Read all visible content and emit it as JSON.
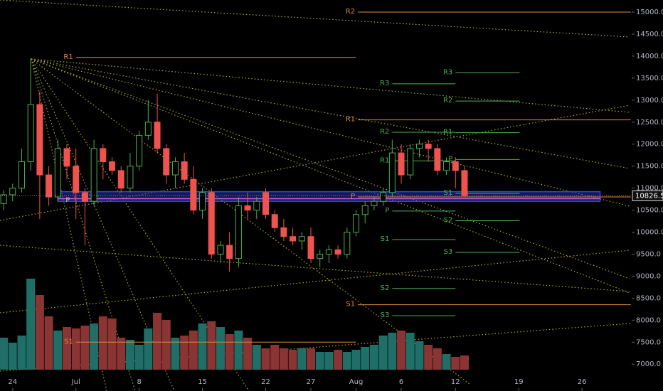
{
  "chart_data": {
    "type": "candlestick",
    "open": [
      10650,
      10850,
      11000,
      11600,
      12900,
      11300,
      10800,
      11900,
      11500,
      10900,
      10700,
      11900,
      11600,
      11400,
      11000,
      11500,
      12200,
      12500,
      11900,
      11300,
      11600,
      11200,
      10500,
      10900,
      9500,
      9700,
      9400,
      10600,
      10500,
      10900,
      10400,
      10100,
      9900,
      9800,
      9900,
      9400,
      9500,
      9600,
      9500,
      10000,
      10400,
      10600,
      10700,
      10900,
      11800,
      11300,
      11900,
      12000,
      11900,
      11400,
      11600,
      11400
    ],
    "high": [
      10950,
      11100,
      11900,
      13950,
      13200,
      11500,
      12100,
      12000,
      11900,
      11000,
      12100,
      12000,
      11700,
      11500,
      11800,
      12300,
      13000,
      13150,
      12000,
      11700,
      11800,
      11500,
      11000,
      11000,
      9800,
      10000,
      10800,
      10900,
      10800,
      11000,
      10500,
      10300,
      10100,
      10000,
      10100,
      9600,
      9700,
      9700,
      10100,
      10500,
      10700,
      10800,
      11000,
      12100,
      12000,
      12000,
      12100,
      12100,
      12000,
      11700,
      11700,
      11500
    ],
    "low": [
      10500,
      10700,
      10900,
      11400,
      10300,
      10600,
      10700,
      11200,
      10300,
      9700,
      10600,
      11200,
      11300,
      10900,
      10900,
      11400,
      12100,
      11800,
      11100,
      11000,
      11100,
      10400,
      10300,
      9400,
      9300,
      9100,
      9200,
      10300,
      10300,
      10300,
      10000,
      9800,
      9700,
      9600,
      9300,
      9200,
      9300,
      9400,
      9400,
      9900,
      10200,
      10500,
      10600,
      10800,
      11100,
      11200,
      11700,
      11600,
      11300,
      11300,
      11000,
      10800
    ],
    "close": [
      10850,
      11000,
      11600,
      12900,
      11300,
      10800,
      11900,
      11500,
      10900,
      10700,
      11900,
      11600,
      11400,
      11000,
      11500,
      12200,
      12500,
      11900,
      11300,
      11600,
      11200,
      10500,
      10900,
      9500,
      9700,
      9400,
      10600,
      10500,
      10700,
      10400,
      10100,
      9900,
      9800,
      9900,
      9400,
      9500,
      9600,
      9500,
      10000,
      10400,
      10600,
      10700,
      10900,
      11800,
      11300,
      11900,
      12000,
      11900,
      11400,
      11600,
      11400,
      10830
    ],
    "volume": [
      45,
      38,
      48,
      128,
      105,
      75,
      55,
      60,
      58,
      62,
      65,
      75,
      72,
      45,
      42,
      35,
      58,
      80,
      70,
      45,
      48,
      55,
      65,
      68,
      60,
      50,
      55,
      45,
      35,
      30,
      35,
      30,
      28,
      30,
      30,
      25,
      25,
      28,
      25,
      28,
      32,
      35,
      48,
      52,
      55,
      52,
      40,
      35,
      30,
      22,
      18,
      20
    ],
    "up_color": "#4caf50",
    "down_color": "#ef5350",
    "volume_up_color": "#1f6f68",
    "volume_down_color": "#8a3434",
    "ylim": [
      6390,
      15275
    ],
    "yticks": [
      {
        "value": 7000,
        "label": "7000.0"
      },
      {
        "value": 7500,
        "label": "7500.0"
      },
      {
        "value": 8000,
        "label": "8000.0"
      },
      {
        "value": 8500,
        "label": "8500.0"
      },
      {
        "value": 9000,
        "label": "9000.0"
      },
      {
        "value": 9500,
        "label": "9500.0"
      },
      {
        "value": 10000,
        "label": "10000.0"
      },
      {
        "value": 10500,
        "label": "10500.0"
      },
      {
        "value": 11000,
        "label": "11000.0"
      },
      {
        "value": 11500,
        "label": "11500.0"
      },
      {
        "value": 12000,
        "label": "12000.0"
      },
      {
        "value": 12500,
        "label": "12500.0"
      },
      {
        "value": 13000,
        "label": "13000.0"
      },
      {
        "value": 13500,
        "label": "13500.0"
      },
      {
        "value": 14000,
        "label": "14000.0"
      },
      {
        "value": 14500,
        "label": "14500.0"
      },
      {
        "value": 15000,
        "label": "15000.0"
      }
    ],
    "xlim": [
      -0.4,
      69.5
    ],
    "xticks": [
      {
        "value": 1,
        "label": "24"
      },
      {
        "value": 8,
        "label": "Jul"
      },
      {
        "value": 15,
        "label": "8"
      },
      {
        "value": 22,
        "label": "15"
      },
      {
        "value": 29,
        "label": "22"
      },
      {
        "value": 34,
        "label": "27"
      },
      {
        "value": 39,
        "label": "Aug"
      },
      {
        "value": 44,
        "label": "6"
      },
      {
        "value": 50,
        "label": "12"
      },
      {
        "value": 57,
        "label": "19"
      },
      {
        "value": 64,
        "label": "26"
      }
    ],
    "last_price": {
      "value": 10826.5,
      "label": "10826.5"
    },
    "zone": {
      "low": 10700,
      "high": 10920,
      "x0": 6,
      "x1": 66
    },
    "pivot_line": {
      "label": "P",
      "price": 10760,
      "x0": 6,
      "x1": 66,
      "color": "#d060d0"
    },
    "pivots": [
      {
        "label": "R2",
        "price": 15000,
        "x0": 39.2,
        "x1": 69.4,
        "color": "#e08a3c"
      },
      {
        "label": "R1",
        "price": 13970,
        "x0": 8,
        "x1": 39,
        "color": "#e08a3c"
      },
      {
        "label": "R1",
        "price": 12550,
        "x0": 39.2,
        "x1": 69.4,
        "color": "#e08a3c"
      },
      {
        "label": "P",
        "price": 10800,
        "x0": 39.2,
        "x1": 69.4,
        "color": "#e08a3c"
      },
      {
        "label": "S1",
        "price": 8350,
        "x0": 39.2,
        "x1": 69.4,
        "color": "#e08a3c"
      },
      {
        "label": "S1",
        "price": 7500,
        "x0": 8,
        "x1": 39,
        "color": "#e08a3c"
      },
      {
        "label": "R3",
        "price": 13620,
        "x0": 50,
        "x1": 57.1,
        "color": "#4caf50"
      },
      {
        "label": "R3",
        "price": 13370,
        "x0": 43,
        "x1": 50,
        "color": "#4caf50"
      },
      {
        "label": "R2",
        "price": 12980,
        "x0": 50,
        "x1": 57.1,
        "color": "#4caf50"
      },
      {
        "label": "R2",
        "price": 12270,
        "x0": 43,
        "x1": 50,
        "color": "#4caf50"
      },
      {
        "label": "R1",
        "price": 12260,
        "x0": 50,
        "x1": 57.1,
        "color": "#4caf50"
      },
      {
        "label": "R1",
        "price": 11620,
        "x0": 43,
        "x1": 50,
        "color": "#4caf50"
      },
      {
        "label": "P",
        "price": 11650,
        "x0": 50,
        "x1": 57.1,
        "color": "#4caf50"
      },
      {
        "label": "S1",
        "price": 10880,
        "x0": 50,
        "x1": 57.1,
        "color": "#4caf50"
      },
      {
        "label": "P",
        "price": 10480,
        "x0": 43,
        "x1": 50,
        "color": "#4caf50"
      },
      {
        "label": "S2",
        "price": 10260,
        "x0": 50,
        "x1": 57.1,
        "color": "#4caf50"
      },
      {
        "label": "S1",
        "price": 9830,
        "x0": 43,
        "x1": 50,
        "color": "#4caf50"
      },
      {
        "label": "S3",
        "price": 9540,
        "x0": 50,
        "x1": 57.1,
        "color": "#4caf50"
      },
      {
        "label": "S2",
        "price": 8720,
        "x0": 43,
        "x1": 50,
        "color": "#4caf50"
      },
      {
        "label": "S3",
        "price": 8100,
        "x0": 43,
        "x1": 50,
        "color": "#4caf50"
      }
    ]
  }
}
